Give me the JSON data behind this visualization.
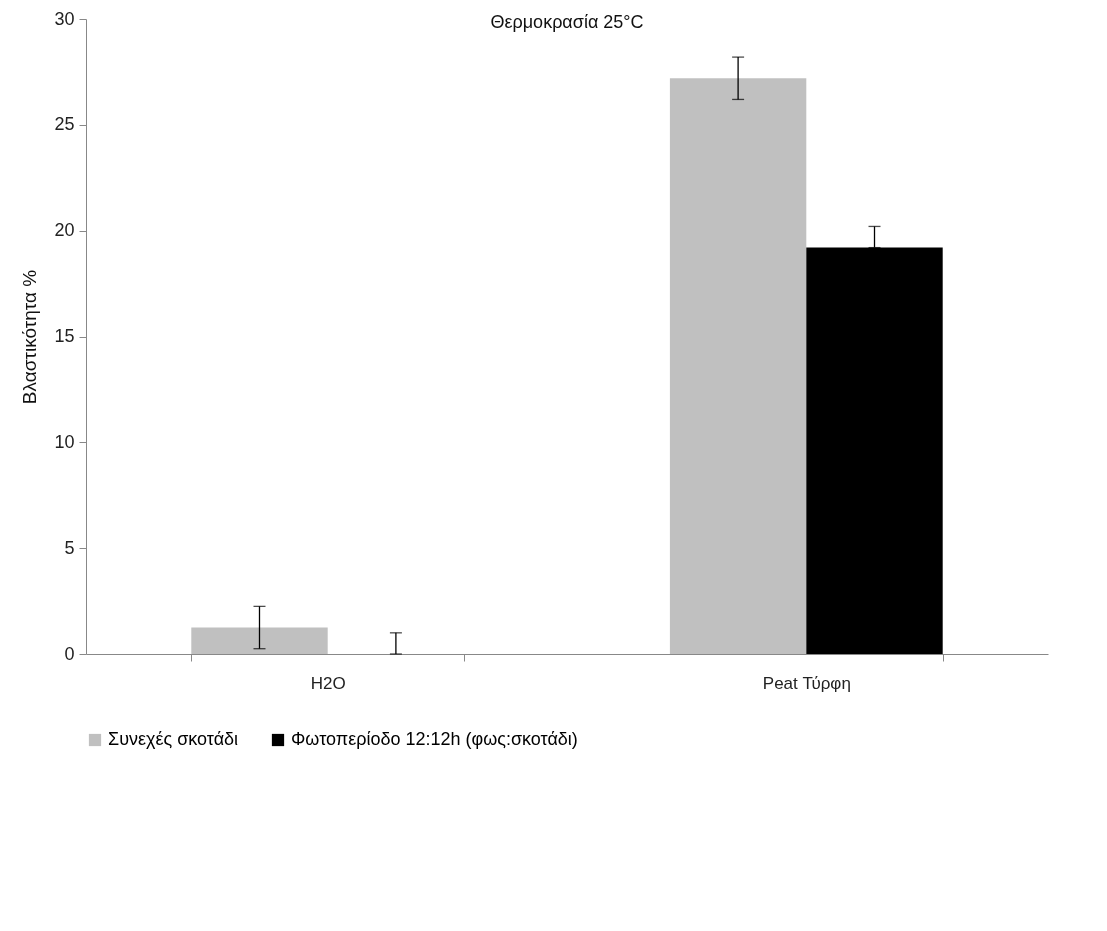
{
  "chart_data": {
    "type": "bar",
    "title": "Θερμοκρασία 25°C",
    "ylabel": "Βλαστικότητα %",
    "categories": [
      "H2O",
      "Peat Τύρφη"
    ],
    "series": [
      {
        "name": "Συνεχές σκοτάδι",
        "color": "#c0c0c0",
        "values": [
          1.25,
          27.2
        ],
        "errors": [
          [
            0.25,
            2.25
          ],
          [
            26.2,
            28.2
          ]
        ]
      },
      {
        "name": "Φωτοπερίοδο 12:12h (φως:σκοτάδι)",
        "color": "#000000",
        "values": [
          0,
          19.2
        ],
        "errors": [
          [
            0,
            1
          ],
          [
            19.2,
            20.2
          ]
        ]
      }
    ],
    "ylim": [
      0,
      30
    ],
    "yticks": [
      0,
      5,
      10,
      15,
      20,
      25,
      30
    ],
    "grid": false,
    "legend": "bottom"
  }
}
